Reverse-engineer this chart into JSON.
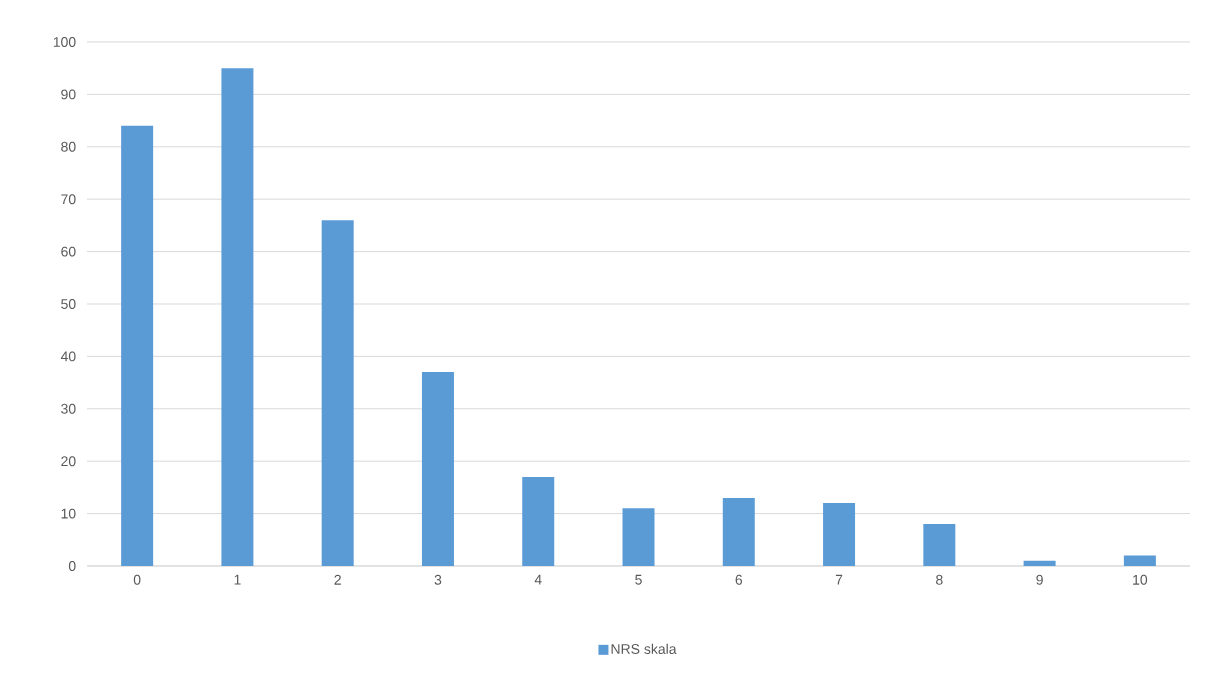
{
  "chart_data": {
    "type": "bar",
    "categories": [
      "0",
      "1",
      "2",
      "3",
      "4",
      "5",
      "6",
      "7",
      "8",
      "9",
      "10"
    ],
    "series": [
      {
        "name": "NRS skala",
        "color": "#5b9bd5",
        "values": [
          84,
          95,
          66,
          37,
          17,
          11,
          13,
          12,
          8,
          1,
          2
        ]
      }
    ],
    "ylim": [
      0,
      100
    ],
    "yticks": [
      0,
      10,
      20,
      30,
      40,
      50,
      60,
      70,
      80,
      90,
      100
    ],
    "grid": "y",
    "legend": "bottom"
  }
}
